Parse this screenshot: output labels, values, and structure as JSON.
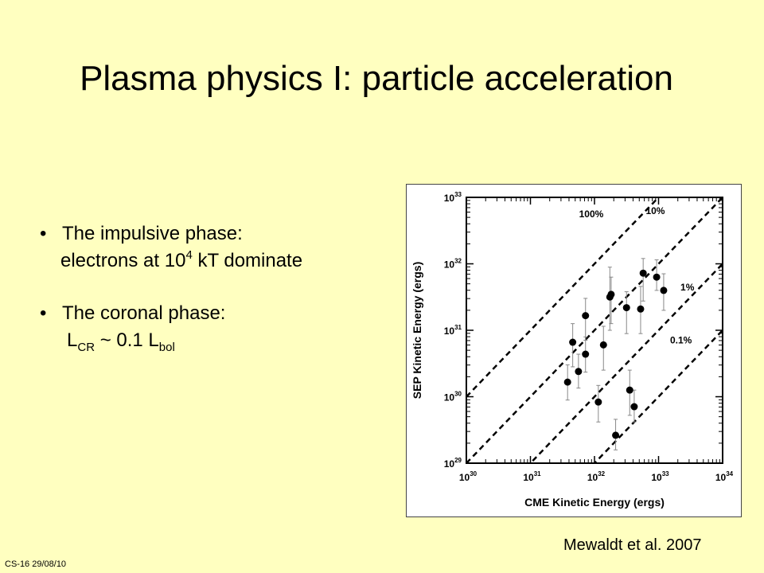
{
  "slide": {
    "title": "Plasma physics I: particle acceleration",
    "bullet1": {
      "heading": "The impulsive phase:",
      "line_prefix": "electrons at 10",
      "line_sup": "4",
      "line_suffix": " kT dominate"
    },
    "bullet2": {
      "heading": "The coronal phase:",
      "l1": "L",
      "l1_sub": "CR",
      "mid": " ~ 0.1 L",
      "l2_sub": "bol"
    },
    "bullet_glyph": "•",
    "caption": "Mewaldt et al. 2007",
    "footer": "CS-16 29/08/10"
  },
  "chart_data": {
    "type": "scatter",
    "xlabel": "CME Kinetic Energy (ergs)",
    "ylabel": "SEP Kinetic Energy (ergs)",
    "xscale": "log",
    "yscale": "log",
    "xlim_exp": [
      30,
      34
    ],
    "ylim_exp": [
      29,
      33
    ],
    "tick_base": "10",
    "x_ticks_exp": [
      "30",
      "31",
      "32",
      "33",
      "34"
    ],
    "y_ticks_exp": [
      "29",
      "30",
      "31",
      "32",
      "33"
    ],
    "ratio_lines": [
      {
        "label": "100%",
        "log_offset": 0
      },
      {
        "label": "10%",
        "log_offset": -1
      },
      {
        "label": "1%",
        "log_offset": -2
      },
      {
        "label": "0.1%",
        "log_offset": -3
      }
    ],
    "points": [
      {
        "x": 31.58,
        "y": 30.22,
        "ylo": 29.95,
        "yhi": 30.48
      },
      {
        "x": 31.66,
        "y": 30.82,
        "ylo": 30.45,
        "yhi": 31.1
      },
      {
        "x": 31.75,
        "y": 30.38,
        "ylo": 30.13,
        "yhi": 30.64
      },
      {
        "x": 31.86,
        "y": 30.64,
        "ylo": 30.37,
        "yhi": 30.9
      },
      {
        "x": 31.86,
        "y": 31.22,
        "ylo": 30.85,
        "yhi": 31.48
      },
      {
        "x": 32.06,
        "y": 29.92,
        "ylo": 29.62,
        "yhi": 30.17
      },
      {
        "x": 32.14,
        "y": 30.78,
        "ylo": 30.4,
        "yhi": 31.06
      },
      {
        "x": 32.24,
        "y": 31.5,
        "ylo": 31.0,
        "yhi": 31.95
      },
      {
        "x": 32.26,
        "y": 31.54,
        "ylo": 31.1,
        "yhi": 31.8
      },
      {
        "x": 32.33,
        "y": 29.42,
        "ylo": 29.2,
        "yhi": 29.66
      },
      {
        "x": 32.5,
        "y": 31.34,
        "ylo": 30.95,
        "yhi": 31.58
      },
      {
        "x": 32.55,
        "y": 30.1,
        "ylo": 29.72,
        "yhi": 30.4
      },
      {
        "x": 32.62,
        "y": 29.85,
        "ylo": 29.62,
        "yhi": 30.1
      },
      {
        "x": 32.72,
        "y": 31.32,
        "ylo": 30.95,
        "yhi": 31.66
      },
      {
        "x": 32.76,
        "y": 31.86,
        "ylo": 31.44,
        "yhi": 32.08
      },
      {
        "x": 32.97,
        "y": 31.8,
        "ylo": 31.6,
        "yhi": 32.06
      },
      {
        "x": 33.08,
        "y": 31.6,
        "ylo": 31.3,
        "yhi": 31.85
      }
    ]
  }
}
